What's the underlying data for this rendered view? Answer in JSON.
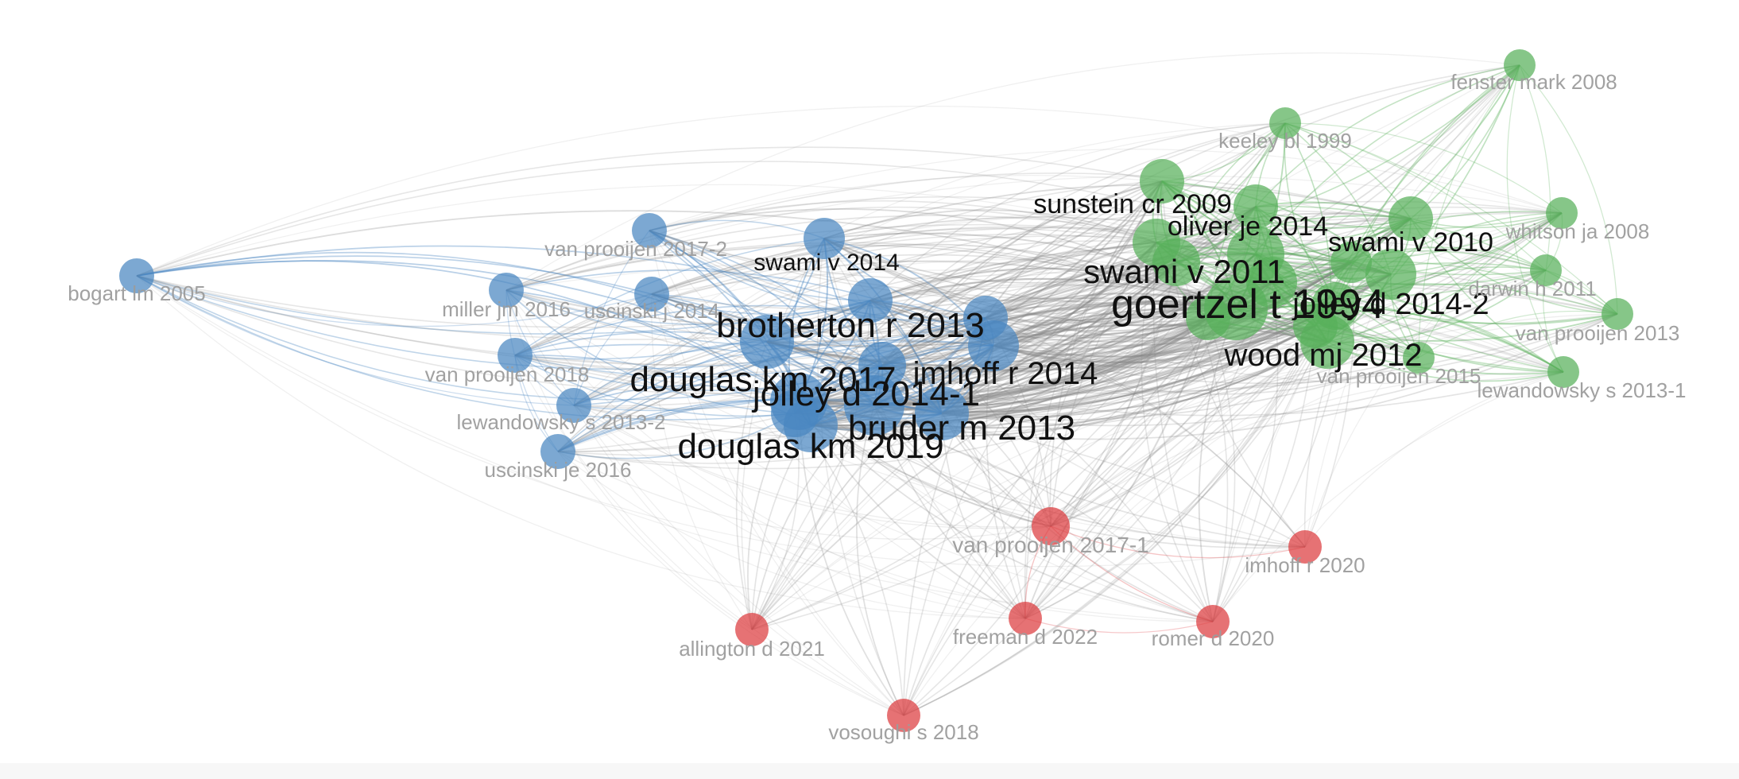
{
  "colors": {
    "cluster1": "#4a86c1",
    "cluster2": "#58b05a",
    "cluster3": "#dd3b3f",
    "inter_edge": "#8a8a8a",
    "label_big": "#111111",
    "label_small": "#9c9c9c"
  },
  "nodes": [
    {
      "id": "goertzel",
      "label": "goertzel t 1994",
      "cluster": 2,
      "weight": 10
    },
    {
      "id": "douglas17",
      "label": "douglas km 2017",
      "cluster": 1,
      "weight": 9
    },
    {
      "id": "jolley1",
      "label": "jolley d 2014-1",
      "cluster": 1,
      "weight": 9
    },
    {
      "id": "douglas19",
      "label": "douglas km 2019",
      "cluster": 1,
      "weight": 8
    },
    {
      "id": "brotherton",
      "label": "brotherton r 2013",
      "cluster": 1,
      "weight": 8
    },
    {
      "id": "bruder",
      "label": "bruder m 2013",
      "cluster": 1,
      "weight": 8
    },
    {
      "id": "imhoff14",
      "label": "imhoff r 2014",
      "cluster": 1,
      "weight": 8
    },
    {
      "id": "swami11",
      "label": "swami v 2011",
      "cluster": 2,
      "weight": 8
    },
    {
      "id": "wood",
      "label": "wood mj 2012",
      "cluster": 2,
      "weight": 8
    },
    {
      "id": "jolley2",
      "label": "jolley d 2014-2",
      "cluster": 2,
      "weight": 7
    },
    {
      "id": "sunstein",
      "label": "sunstein cr 2009",
      "cluster": 2,
      "weight": 7
    },
    {
      "id": "oliver",
      "label": "oliver je 2014",
      "cluster": 2,
      "weight": 7
    },
    {
      "id": "swami10",
      "label": "swami v 2010",
      "cluster": 2,
      "weight": 7
    },
    {
      "id": "swami14",
      "label": "swami v 2014",
      "cluster": 1,
      "weight": 6
    },
    {
      "id": "vp2013",
      "label": "van prooijen 2013",
      "cluster": 2,
      "weight": 3
    },
    {
      "id": "darwin",
      "label": "darwin h 2011",
      "cluster": 2,
      "weight": 3
    },
    {
      "id": "whitson",
      "label": "whitson ja 2008",
      "cluster": 2,
      "weight": 3
    },
    {
      "id": "fenster",
      "label": "fenster mark 2008",
      "cluster": 2,
      "weight": 3
    },
    {
      "id": "keeley",
      "label": "keeley bl 1999",
      "cluster": 2,
      "weight": 3
    },
    {
      "id": "vp2015",
      "label": "van prooijen 2015",
      "cluster": 2,
      "weight": 3
    },
    {
      "id": "lew1",
      "label": "lewandowsky s 2013-1",
      "cluster": 2,
      "weight": 3
    },
    {
      "id": "bogart",
      "label": "bogart lm 2005",
      "cluster": 1,
      "weight": 3
    },
    {
      "id": "vp2017_2",
      "label": "van prooijen 2017-2",
      "cluster": 1,
      "weight": 3
    },
    {
      "id": "miller",
      "label": "miller jm 2016",
      "cluster": 1,
      "weight": 3
    },
    {
      "id": "uscinskij",
      "label": "uscinski j 2014",
      "cluster": 1,
      "weight": 3
    },
    {
      "id": "vp2018",
      "label": "van prooijen 2018",
      "cluster": 1,
      "weight": 3
    },
    {
      "id": "lew2",
      "label": "lewandowsky s 2013-2",
      "cluster": 1,
      "weight": 3
    },
    {
      "id": "uscinskije",
      "label": "uscinski je 2016",
      "cluster": 1,
      "weight": 3
    },
    {
      "id": "vp2017_1",
      "label": "van prooijen 2017-1",
      "cluster": 3,
      "weight": 4
    },
    {
      "id": "imhoff20",
      "label": "imhoff r 2020",
      "cluster": 3,
      "weight": 3
    },
    {
      "id": "allington",
      "label": "allington d 2021",
      "cluster": 3,
      "weight": 3
    },
    {
      "id": "freeman",
      "label": "freeman d 2022",
      "cluster": 3,
      "weight": 3
    },
    {
      "id": "romer",
      "label": "romer d 2020",
      "cluster": 3,
      "weight": 3
    },
    {
      "id": "vosoughi",
      "label": "vosoughi s 2018",
      "cluster": 3,
      "weight": 3
    }
  ]
}
